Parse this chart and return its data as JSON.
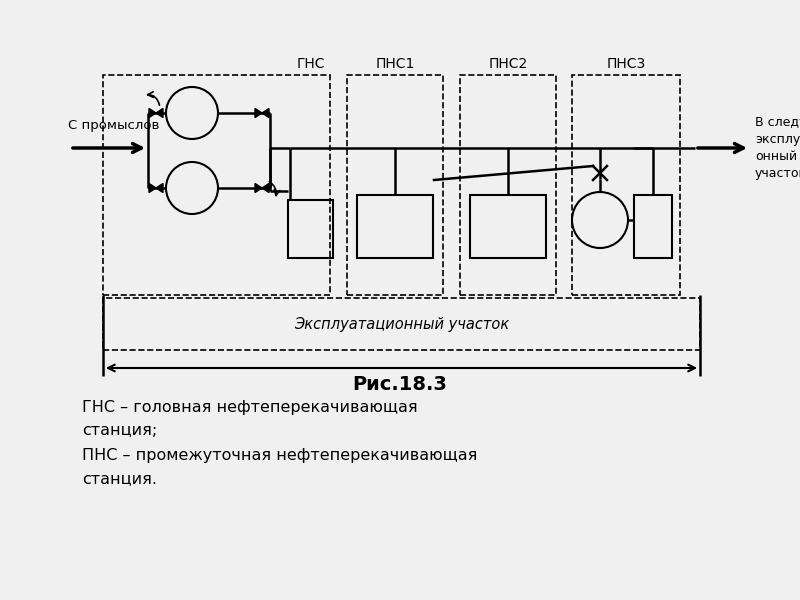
{
  "title": "Рис.18.3",
  "legend_line1": "ГНС – головная нефтеперекачивающая",
  "legend_line1b": "станция;",
  "legend_line2": "ПНС – промежуточная нефтеперекачивающая",
  "legend_line2b": "станция.",
  "input_label": "С промыслов",
  "output_label": "В следующий\nэксплутаци-\nонный\nучасток",
  "exploitation_label": "Эксплуатационный участок",
  "gns_label": "ГНС",
  "pns1_label": "ПНС1",
  "pns2_label": "ПНС2",
  "pns3_label": "ПНС3",
  "bg": "#f0f0f0"
}
